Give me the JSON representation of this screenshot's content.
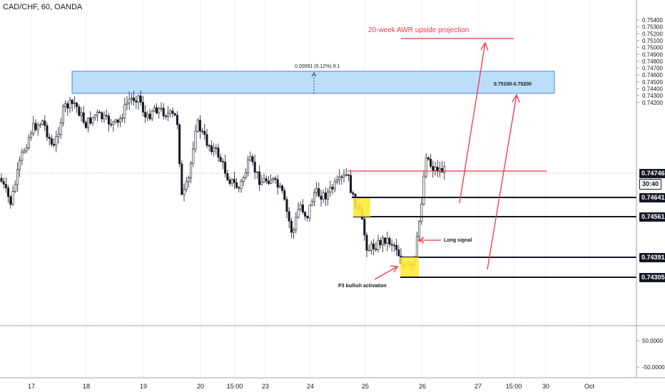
{
  "chart_data": {
    "type": "candlestick",
    "title": "CAD/CHF, 60, OANDA",
    "x_tick_labels": [
      "17",
      "18",
      "19",
      "20",
      "15:00",
      "23",
      "24",
      "25",
      "26",
      "27",
      "15:00",
      "30",
      "Oct"
    ],
    "y_tick_labels": [
      "0.75400",
      "0.75300",
      "0.75200",
      "0.75100",
      "0.75000",
      "0.74900",
      "0.74800",
      "0.74700",
      "0.74600",
      "0.74500",
      "0.74400",
      "0.74300",
      "0.74200"
    ],
    "ylim": [
      0.7415,
      0.7547
    ],
    "last_price": "0.74746",
    "countdown": "30:40",
    "levels": [
      {
        "price": 0.74641,
        "label": "0.74641"
      },
      {
        "price": 0.74561,
        "label": "0.74561"
      },
      {
        "price": 0.74391,
        "label": "0.74391"
      },
      {
        "price": 0.74305,
        "label": "0.74305"
      }
    ],
    "resistance_zone": {
      "from": 0.751,
      "to": 0.752,
      "label": "0.75100-0.75200"
    },
    "measure_label": "0.00091 (0.12%) 9.1",
    "annotations": {
      "projection": "20-week AWR upside projection",
      "long_signal": "Long signal",
      "activation": "P3 bullish activation"
    },
    "oscillator": {
      "tick_labels": [
        "50.0000",
        "-50.0000"
      ]
    },
    "colors": {
      "candle": "#131722",
      "zone": "#bbdefb",
      "zone_border": "#2962ff",
      "red": "#f23645",
      "yellow": "#ffeb3b"
    }
  }
}
